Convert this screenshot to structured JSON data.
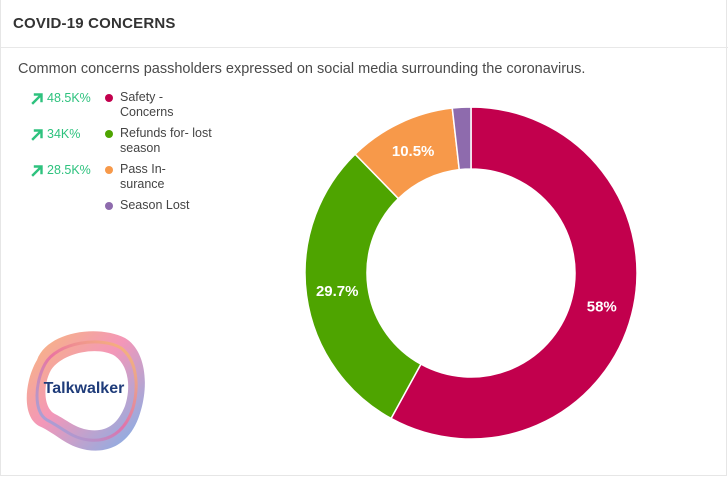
{
  "title": "COVID-19 CONCERNS",
  "subtitle": "Common concerns passholders expressed on social media surrounding the coronavirus.",
  "logo_text": "Talkwalker",
  "legend": [
    {
      "trend": "48.5K%",
      "label": "Safety - Concerns",
      "color": "#c2004d"
    },
    {
      "trend": "34K%",
      "label": "Refunds for- lost season",
      "color": "#4ea400"
    },
    {
      "trend": "28.5K%",
      "label": "Pass In- surance",
      "color": "#f7994a"
    },
    {
      "trend": "",
      "label": "Season Lost",
      "color": "#8e6bad"
    }
  ],
  "chart_data": {
    "type": "pie",
    "title": "COVID-19 CONCERNS",
    "categories": [
      "Safety - Concerns",
      "Refunds for- lost season",
      "Pass In- surance",
      "Season Lost"
    ],
    "values": [
      58,
      29.7,
      10.5,
      1.8
    ],
    "labels": [
      "58%",
      "29.7%",
      "10.5%",
      ""
    ],
    "colors": [
      "#c2004d",
      "#4ea400",
      "#f7994a",
      "#8e6bad"
    ],
    "donut": true
  }
}
